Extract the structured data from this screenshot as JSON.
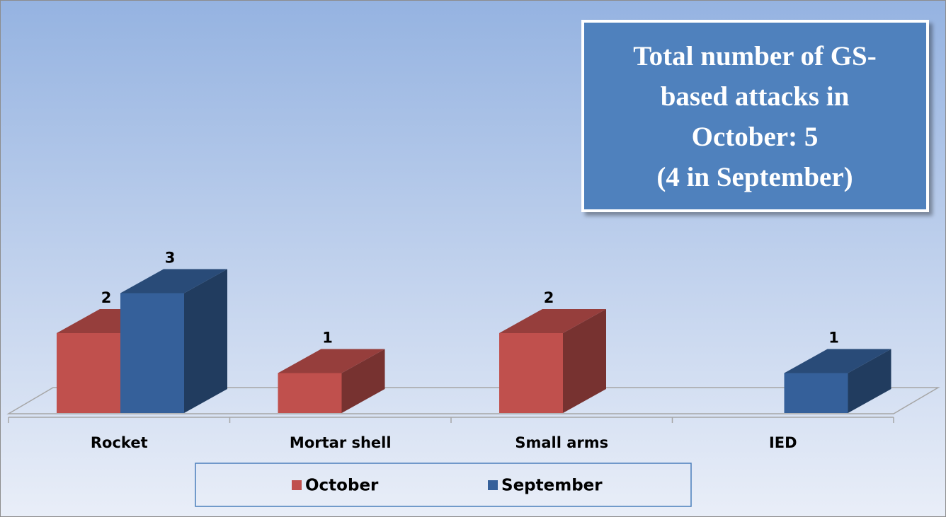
{
  "chart_data": {
    "type": "bar3d",
    "annotation": [
      "Total number of GS-",
      "based attacks in",
      "October: 5",
      "(4 in September)"
    ],
    "categories": [
      "Rocket",
      "Mortar shell",
      "Small arms",
      "IED"
    ],
    "series": [
      {
        "name": "October",
        "color": "#c0504d",
        "values": [
          2,
          1,
          2,
          null
        ]
      },
      {
        "name": "September",
        "color": "#35609a",
        "values": [
          3,
          null,
          null,
          1
        ]
      }
    ],
    "legend": "bottom"
  }
}
